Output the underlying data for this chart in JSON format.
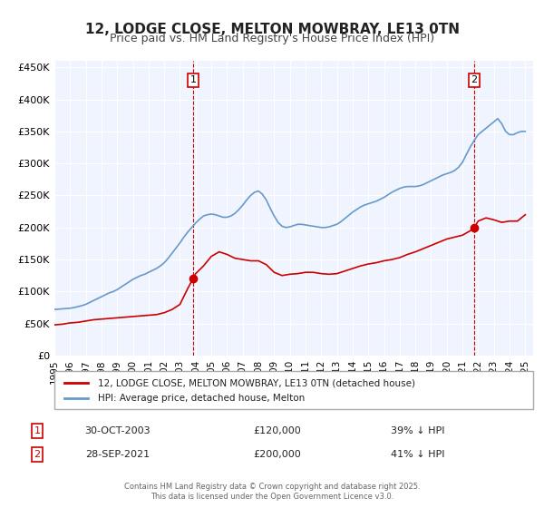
{
  "title": "12, LODGE CLOSE, MELTON MOWBRAY, LE13 0TN",
  "subtitle": "Price paid vs. HM Land Registry's House Price Index (HPI)",
  "title_fontsize": 11,
  "subtitle_fontsize": 9,
  "background_color": "#ffffff",
  "plot_background_color": "#f0f4ff",
  "grid_color": "#ffffff",
  "ylabel_values": [
    "£0",
    "£50K",
    "£100K",
    "£150K",
    "£200K",
    "£250K",
    "£300K",
    "£350K",
    "£400K",
    "£450K"
  ],
  "yticks": [
    0,
    50000,
    100000,
    150000,
    200000,
    250000,
    300000,
    350000,
    400000,
    450000
  ],
  "ylim": [
    0,
    460000
  ],
  "xlim_start": 1995.0,
  "xlim_end": 2025.5,
  "xticks": [
    1995,
    1996,
    1997,
    1998,
    1999,
    2000,
    2001,
    2002,
    2003,
    2004,
    2005,
    2006,
    2007,
    2008,
    2009,
    2010,
    2011,
    2012,
    2013,
    2014,
    2015,
    2016,
    2017,
    2018,
    2019,
    2020,
    2021,
    2022,
    2023,
    2024,
    2025
  ],
  "red_line_color": "#cc0000",
  "blue_line_color": "#6699cc",
  "vline_color": "#cc0000",
  "marker1_x": 2003.83,
  "marker1_y": 120000,
  "marker2_x": 2021.75,
  "marker2_y": 200000,
  "legend_label_red": "12, LODGE CLOSE, MELTON MOWBRAY, LE13 0TN (detached house)",
  "legend_label_blue": "HPI: Average price, detached house, Melton",
  "annotation1_label": "1",
  "annotation1_date": "30-OCT-2003",
  "annotation1_price": "£120,000",
  "annotation1_hpi": "39% ↓ HPI",
  "annotation2_label": "2",
  "annotation2_date": "28-SEP-2021",
  "annotation2_price": "£200,000",
  "annotation2_hpi": "41% ↓ HPI",
  "footer_text": "Contains HM Land Registry data © Crown copyright and database right 2025.\nThis data is licensed under the Open Government Licence v3.0.",
  "hpi_data_x": [
    1995.0,
    1995.25,
    1995.5,
    1995.75,
    1996.0,
    1996.25,
    1996.5,
    1996.75,
    1997.0,
    1997.25,
    1997.5,
    1997.75,
    1998.0,
    1998.25,
    1998.5,
    1998.75,
    1999.0,
    1999.25,
    1999.5,
    1999.75,
    2000.0,
    2000.25,
    2000.5,
    2000.75,
    2001.0,
    2001.25,
    2001.5,
    2001.75,
    2002.0,
    2002.25,
    2002.5,
    2002.75,
    2003.0,
    2003.25,
    2003.5,
    2003.75,
    2004.0,
    2004.25,
    2004.5,
    2004.75,
    2005.0,
    2005.25,
    2005.5,
    2005.75,
    2006.0,
    2006.25,
    2006.5,
    2006.75,
    2007.0,
    2007.25,
    2007.5,
    2007.75,
    2008.0,
    2008.25,
    2008.5,
    2008.75,
    2009.0,
    2009.25,
    2009.5,
    2009.75,
    2010.0,
    2010.25,
    2010.5,
    2010.75,
    2011.0,
    2011.25,
    2011.5,
    2011.75,
    2012.0,
    2012.25,
    2012.5,
    2012.75,
    2013.0,
    2013.25,
    2013.5,
    2013.75,
    2014.0,
    2014.25,
    2014.5,
    2014.75,
    2015.0,
    2015.25,
    2015.5,
    2015.75,
    2016.0,
    2016.25,
    2016.5,
    2016.75,
    2017.0,
    2017.25,
    2017.5,
    2017.75,
    2018.0,
    2018.25,
    2018.5,
    2018.75,
    2019.0,
    2019.25,
    2019.5,
    2019.75,
    2020.0,
    2020.25,
    2020.5,
    2020.75,
    2021.0,
    2021.25,
    2021.5,
    2021.75,
    2022.0,
    2022.25,
    2022.5,
    2022.75,
    2023.0,
    2023.25,
    2023.5,
    2023.75,
    2024.0,
    2024.25,
    2024.5,
    2024.75,
    2025.0
  ],
  "hpi_data_y": [
    72000,
    72500,
    73000,
    73500,
    74000,
    75000,
    76500,
    78000,
    80000,
    83000,
    86000,
    89000,
    92000,
    95000,
    98000,
    100000,
    103000,
    107000,
    111000,
    115000,
    119000,
    122000,
    125000,
    127000,
    130000,
    133000,
    136000,
    140000,
    145000,
    152000,
    160000,
    168000,
    176000,
    185000,
    193000,
    200000,
    207000,
    213000,
    218000,
    220000,
    221000,
    220000,
    218000,
    216000,
    216000,
    218000,
    222000,
    228000,
    235000,
    243000,
    250000,
    255000,
    257000,
    252000,
    243000,
    230000,
    218000,
    208000,
    202000,
    200000,
    201000,
    203000,
    205000,
    205000,
    204000,
    203000,
    202000,
    201000,
    200000,
    200000,
    201000,
    203000,
    205000,
    209000,
    214000,
    219000,
    224000,
    228000,
    232000,
    235000,
    237000,
    239000,
    241000,
    244000,
    247000,
    251000,
    255000,
    258000,
    261000,
    263000,
    264000,
    264000,
    264000,
    265000,
    267000,
    270000,
    273000,
    276000,
    279000,
    282000,
    284000,
    286000,
    289000,
    294000,
    302000,
    314000,
    326000,
    336000,
    345000,
    350000,
    355000,
    360000,
    365000,
    370000,
    362000,
    350000,
    345000,
    345000,
    348000,
    350000,
    350000
  ],
  "red_data_x": [
    1995.0,
    1995.5,
    1996.0,
    1996.5,
    1997.0,
    1997.5,
    1998.0,
    1998.5,
    1999.0,
    1999.5,
    2000.0,
    2000.5,
    2001.0,
    2001.5,
    2002.0,
    2002.5,
    2003.0,
    2003.5,
    2003.83,
    2004.0,
    2004.5,
    2005.0,
    2005.5,
    2006.0,
    2006.5,
    2007.0,
    2007.5,
    2008.0,
    2008.5,
    2009.0,
    2009.5,
    2010.0,
    2010.5,
    2011.0,
    2011.5,
    2012.0,
    2012.5,
    2013.0,
    2013.5,
    2014.0,
    2014.5,
    2015.0,
    2015.5,
    2016.0,
    2016.5,
    2017.0,
    2017.5,
    2018.0,
    2018.5,
    2019.0,
    2019.5,
    2020.0,
    2020.5,
    2021.0,
    2021.5,
    2021.75,
    2022.0,
    2022.5,
    2023.0,
    2023.5,
    2024.0,
    2024.5,
    2025.0
  ],
  "red_data_y": [
    48000,
    49000,
    51000,
    52000,
    54000,
    56000,
    57000,
    58000,
    59000,
    60000,
    61000,
    62000,
    63000,
    64000,
    67000,
    72000,
    80000,
    105000,
    120000,
    128000,
    140000,
    155000,
    162000,
    158000,
    152000,
    150000,
    148000,
    148000,
    142000,
    130000,
    125000,
    127000,
    128000,
    130000,
    130000,
    128000,
    127000,
    128000,
    132000,
    136000,
    140000,
    143000,
    145000,
    148000,
    150000,
    153000,
    158000,
    162000,
    167000,
    172000,
    177000,
    182000,
    185000,
    188000,
    195000,
    200000,
    210000,
    215000,
    212000,
    208000,
    210000,
    210000,
    220000
  ]
}
